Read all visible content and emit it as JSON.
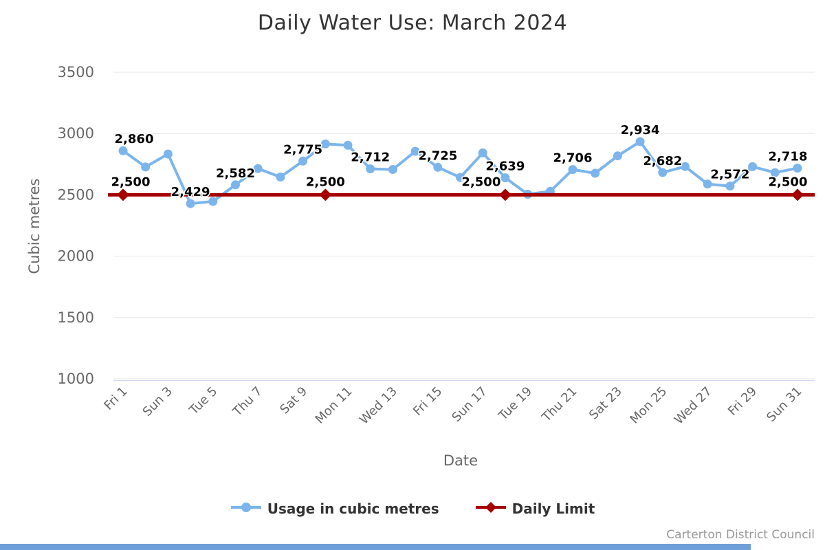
{
  "title": "Daily Water Use: March 2024",
  "footer": {
    "credit": "Carterton District Council"
  },
  "colors": {
    "usage": "#7cb5ec",
    "limit": "#a40000",
    "grid": "#e6e6e6",
    "axis_line": "#ccd6eb",
    "tick_text": "#666666",
    "title_text": "#333333",
    "label_text": "#000000",
    "credit_text": "#999999",
    "bottom_bar": "#6f9fd8"
  },
  "chart_data": {
    "type": "line",
    "title": "Daily Water Use: March 2024",
    "xlabel": "Date",
    "ylabel": "Cubic metres",
    "ylim": [
      1000,
      3500
    ],
    "y_ticks": [
      3500,
      3000,
      2500,
      2000,
      1500,
      1000
    ],
    "x_tick_labels": [
      "Fri 1",
      "Sun 3",
      "Tue 5",
      "Thu 7",
      "Sat 9",
      "Mon 11",
      "Wed 13",
      "Fri 15",
      "Sun 17",
      "Tue 19",
      "Thu 21",
      "Sat 23",
      "Mon 25",
      "Wed 27",
      "Fri 29",
      "Sun 31"
    ],
    "grid": "horizontal-only",
    "legend_position": "bottom",
    "series": [
      {
        "name": "Usage in cubic metres",
        "marker": "circle",
        "days": [
          1,
          2,
          3,
          4,
          5,
          6,
          7,
          8,
          9,
          10,
          11,
          12,
          13,
          14,
          15,
          16,
          17,
          18,
          19,
          20,
          21,
          22,
          23,
          24,
          25,
          26,
          27,
          28,
          29,
          30,
          31
        ],
        "values": [
          2860,
          2727,
          2833,
          2429,
          2446,
          2582,
          2714,
          2645,
          2775,
          2915,
          2904,
          2712,
          2707,
          2855,
          2725,
          2642,
          2842,
          2639,
          2505,
          2528,
          2706,
          2676,
          2818,
          2934,
          2682,
          2731,
          2588,
          2572,
          2730,
          2681,
          2718
        ],
        "labeled_days": [
          1,
          4,
          6,
          9,
          12,
          15,
          18,
          21,
          24,
          25,
          28,
          31
        ],
        "labels": [
          "2,860",
          "2,429",
          "2,582",
          "2,775",
          "2,712",
          "2,725",
          "2,639",
          "2,706",
          "2,934",
          "2,682",
          "2,572",
          "2,718"
        ]
      },
      {
        "name": "Daily Limit",
        "marker": "diamond",
        "value": 2500,
        "marker_days": [
          1,
          10,
          18,
          31
        ],
        "labeled_days": [
          1,
          10,
          18,
          31
        ],
        "labels": [
          "2,500",
          "2,500",
          "2,500",
          "2,500"
        ]
      }
    ]
  }
}
